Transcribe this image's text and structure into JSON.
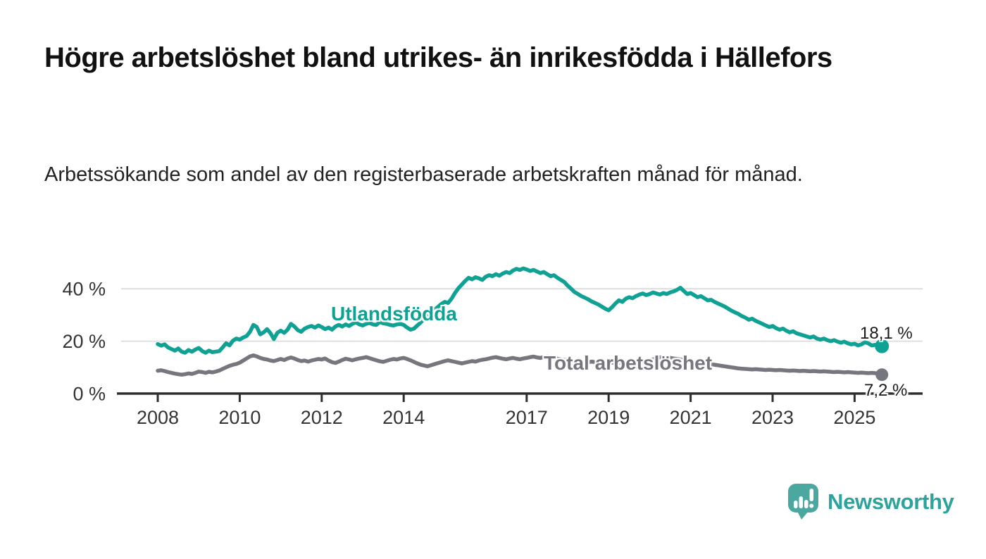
{
  "header": {
    "title": "Högre arbetslöshet bland utrikes- än inrikesfödda i Hällefors",
    "subtitle": "Arbetssökande som andel av den registerbaserade arbetskraften månad för månad."
  },
  "footer": {
    "brand": "Newsworthy"
  },
  "colors": {
    "series_foreign_born": "#0fa294",
    "series_total": "#76767e",
    "gridline": "#dcdcdc",
    "axis": "#2e2e2e",
    "tick_text": "#333333",
    "title_text": "#111111",
    "value_label_text": "#1a1a1a",
    "logo_bubble": "#4aa8a1",
    "logo_text": "#2ca39b",
    "logo_glyph": "#ffffff"
  },
  "chart_data": {
    "type": "line",
    "title": "Högre arbetslöshet bland utrikes- än inrikesfödda i Hällefors",
    "subtitle": "Arbetssökande som andel av den registerbaserade arbetskraften månad för månad.",
    "unit": "%",
    "frequency": "monthly",
    "x_start": "2008-01",
    "x_end": "2025-09",
    "ylim": [
      0,
      50
    ],
    "grid": "horizontal",
    "legend_position": "inline-labels",
    "y_ticks": [
      {
        "value": 0,
        "label": "0 %"
      },
      {
        "value": 20,
        "label": "20 %"
      },
      {
        "value": 40,
        "label": "40 %"
      }
    ],
    "x_ticks": [
      {
        "year": 2008,
        "label": "2008"
      },
      {
        "year": 2010,
        "label": "2010"
      },
      {
        "year": 2012,
        "label": "2012"
      },
      {
        "year": 2014,
        "label": "2014"
      },
      {
        "year": 2017,
        "label": "2017"
      },
      {
        "year": 2019,
        "label": "2019"
      },
      {
        "year": 2021,
        "label": "2021"
      },
      {
        "year": 2023,
        "label": "2023"
      },
      {
        "year": 2025,
        "label": "2025"
      }
    ],
    "series": [
      {
        "name": "Utlandsfödda",
        "color": "#0fa294",
        "end_value": 18.1,
        "end_label": "18,1 %",
        "values": [
          18.9,
          18.3,
          18.8,
          17.6,
          17.0,
          16.4,
          17.2,
          16.0,
          15.6,
          16.6,
          16.0,
          16.8,
          17.4,
          16.2,
          15.6,
          16.4,
          15.8,
          16.0,
          16.2,
          17.6,
          19.2,
          18.4,
          20.2,
          21.0,
          20.6,
          21.4,
          22.0,
          23.6,
          26.2,
          25.4,
          22.6,
          23.4,
          24.6,
          23.0,
          20.8,
          23.2,
          24.0,
          23.2,
          24.4,
          26.6,
          25.6,
          24.2,
          23.6,
          24.8,
          25.4,
          25.8,
          25.2,
          26.0,
          25.4,
          24.6,
          25.2,
          24.4,
          25.6,
          26.2,
          25.6,
          26.4,
          25.8,
          26.6,
          27.2,
          26.4,
          26.0,
          26.6,
          27.0,
          26.4,
          26.2,
          27.4,
          26.8,
          26.6,
          26.2,
          26.0,
          26.4,
          26.6,
          26.2,
          25.2,
          24.4,
          24.8,
          26.0,
          27.2,
          28.6,
          29.8,
          31.0,
          32.0,
          33.0,
          34.2,
          35.0,
          34.6,
          36.2,
          38.4,
          40.2,
          41.6,
          43.0,
          44.2,
          43.6,
          44.4,
          44.0,
          43.4,
          44.6,
          45.2,
          44.8,
          45.6,
          45.0,
          45.8,
          46.4,
          46.0,
          47.0,
          47.6,
          47.2,
          47.8,
          47.4,
          46.8,
          47.2,
          46.6,
          46.0,
          46.4,
          45.6,
          44.8,
          45.2,
          44.2,
          43.4,
          42.6,
          41.2,
          40.0,
          38.8,
          38.0,
          37.2,
          36.6,
          36.0,
          35.2,
          34.6,
          34.0,
          33.2,
          32.4,
          31.8,
          33.0,
          34.4,
          35.6,
          35.0,
          36.2,
          36.8,
          36.4,
          37.2,
          37.8,
          38.2,
          37.6,
          38.0,
          38.6,
          38.2,
          37.8,
          38.4,
          38.0,
          38.6,
          39.0,
          39.6,
          40.4,
          39.2,
          38.0,
          38.4,
          37.6,
          36.8,
          37.2,
          36.4,
          35.6,
          35.8,
          35.0,
          34.4,
          33.8,
          33.2,
          32.4,
          31.6,
          31.0,
          30.4,
          29.6,
          29.0,
          28.2,
          28.6,
          27.8,
          27.2,
          26.6,
          26.0,
          25.4,
          25.8,
          25.0,
          24.4,
          24.8,
          24.0,
          23.4,
          23.8,
          23.0,
          22.6,
          22.2,
          21.8,
          21.4,
          21.8,
          21.0,
          20.6,
          21.0,
          20.4,
          20.0,
          20.4,
          19.8,
          19.4,
          19.8,
          19.2,
          18.8,
          19.0,
          18.4,
          18.8,
          19.6,
          19.2,
          18.4,
          18.6,
          18.3,
          18.1
        ]
      },
      {
        "name": "Total arbetslöshet",
        "color": "#76767e",
        "end_value": 7.2,
        "end_label": "7,2 %",
        "values": [
          8.7,
          8.9,
          8.6,
          8.2,
          7.9,
          7.6,
          7.4,
          7.2,
          7.4,
          7.7,
          7.5,
          7.9,
          8.4,
          8.2,
          7.9,
          8.3,
          8.1,
          8.4,
          8.8,
          9.4,
          10.0,
          10.6,
          11.0,
          11.3,
          11.8,
          12.6,
          13.4,
          14.2,
          14.6,
          14.2,
          13.6,
          13.2,
          13.0,
          12.6,
          12.4,
          12.8,
          13.2,
          12.8,
          13.4,
          13.8,
          13.4,
          12.8,
          12.4,
          12.6,
          12.2,
          12.6,
          12.9,
          13.2,
          13.0,
          13.4,
          12.6,
          12.0,
          11.7,
          12.2,
          12.8,
          13.3,
          13.0,
          12.7,
          13.1,
          13.4,
          13.6,
          13.9,
          13.5,
          13.1,
          12.7,
          12.3,
          12.1,
          12.5,
          12.9,
          13.2,
          13.0,
          13.4,
          13.6,
          13.2,
          12.7,
          12.1,
          11.5,
          11.0,
          10.7,
          10.4,
          10.8,
          11.2,
          11.6,
          12.0,
          12.4,
          12.7,
          12.4,
          12.1,
          11.8,
          11.5,
          11.8,
          12.1,
          12.4,
          12.2,
          12.6,
          12.9,
          13.1,
          13.4,
          13.7,
          13.9,
          13.6,
          13.3,
          13.1,
          13.4,
          13.6,
          13.3,
          13.1,
          13.4,
          13.6,
          13.9,
          14.1,
          13.8,
          13.6,
          13.9,
          14.1,
          13.8,
          13.5,
          13.3,
          13.0,
          12.8,
          13.0,
          12.7,
          12.4,
          12.2,
          12.0,
          11.8,
          12.0,
          12.2,
          12.0,
          11.8,
          11.6,
          11.8,
          12.0,
          11.8,
          11.6,
          11.8,
          12.0,
          12.2,
          12.0,
          11.8,
          12.0,
          12.2,
          12.4,
          12.6,
          12.8,
          13.0,
          13.4,
          13.8,
          14.0,
          13.8,
          13.6,
          13.4,
          13.2,
          13.0,
          12.8,
          12.6,
          12.4,
          12.2,
          12.0,
          11.8,
          11.6,
          11.4,
          11.2,
          11.0,
          10.8,
          10.6,
          10.4,
          10.2,
          10.0,
          9.8,
          9.6,
          9.5,
          9.4,
          9.3,
          9.2,
          9.3,
          9.2,
          9.1,
          9.0,
          9.1,
          9.0,
          8.9,
          9.0,
          8.9,
          8.8,
          8.7,
          8.8,
          8.7,
          8.6,
          8.7,
          8.6,
          8.5,
          8.6,
          8.5,
          8.4,
          8.5,
          8.4,
          8.3,
          8.2,
          8.3,
          8.2,
          8.1,
          8.2,
          8.1,
          8.0,
          7.9,
          8.0,
          7.9,
          7.8,
          7.9,
          7.8,
          7.6,
          7.2
        ]
      }
    ]
  }
}
